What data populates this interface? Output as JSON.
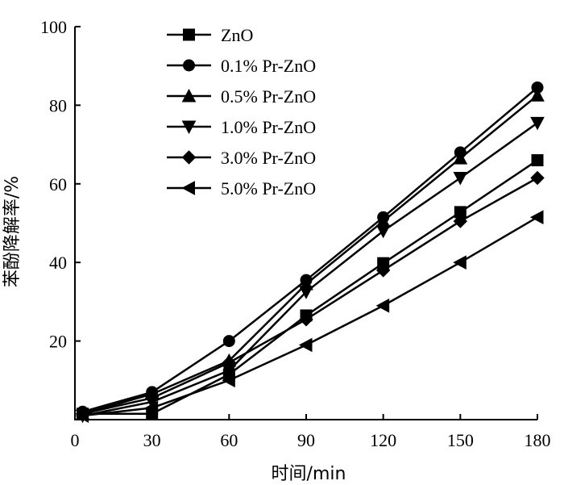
{
  "chart_data": {
    "type": "line",
    "title": "",
    "xlabel": "时间/min",
    "ylabel": "苯酚降解率/%",
    "xlim": [
      0,
      180
    ],
    "ylim": [
      0,
      100
    ],
    "xticks": [
      0,
      30,
      60,
      90,
      120,
      150,
      180
    ],
    "yticks": [
      20,
      40,
      60,
      80,
      100
    ],
    "x": [
      3,
      30,
      60,
      90,
      120,
      150,
      180
    ],
    "grid": false,
    "legend_position": "top-left",
    "series": [
      {
        "name": "ZnO",
        "marker": "square",
        "values": [
          1.5,
          1.5,
          11.5,
          26.5,
          39.8,
          52.8,
          66.0
        ]
      },
      {
        "name": "0.1% Pr-ZnO",
        "marker": "circle",
        "values": [
          2.0,
          7.0,
          20.0,
          35.5,
          51.5,
          68.0,
          84.5
        ]
      },
      {
        "name": "0.5% Pr-ZnO",
        "marker": "triangle-up",
        "values": [
          1.5,
          6.5,
          15.0,
          34.5,
          50.5,
          66.5,
          82.5
        ]
      },
      {
        "name": "1.0% Pr-ZnO",
        "marker": "triangle-down",
        "values": [
          1.0,
          4.5,
          12.5,
          32.5,
          48.0,
          61.5,
          75.5
        ]
      },
      {
        "name": "3.0% Pr-ZnO",
        "marker": "diamond",
        "values": [
          1.5,
          5.5,
          14.5,
          25.5,
          38.0,
          50.5,
          61.5
        ]
      },
      {
        "name": "5.0% Pr-ZnO",
        "marker": "triangle-left",
        "values": [
          1.0,
          3.0,
          10.0,
          19.0,
          29.0,
          40.0,
          51.5
        ]
      }
    ]
  }
}
